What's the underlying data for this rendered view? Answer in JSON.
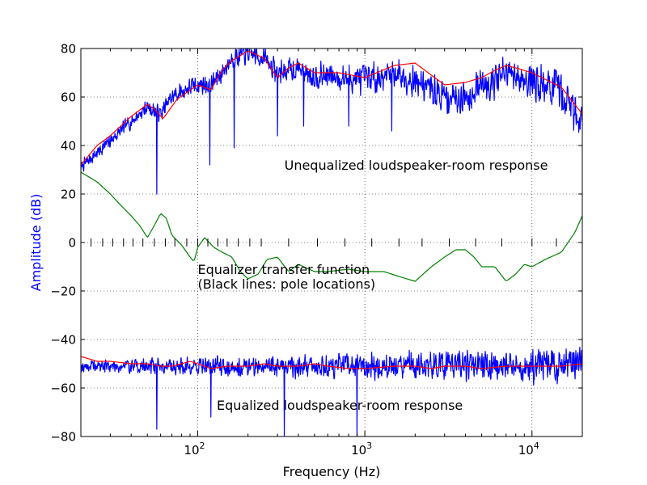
{
  "chart_data": {
    "type": "line",
    "xscale": "log",
    "xlim": [
      20,
      20000
    ],
    "ylim": [
      -80,
      80
    ],
    "xlabel": "Frequency (Hz)",
    "ylabel": "Amplitude (dB)",
    "grid": true,
    "yticks": [
      -80,
      -60,
      -40,
      -20,
      0,
      20,
      40,
      60,
      80
    ],
    "ytick_labels": [
      "−80",
      "−60",
      "−40",
      "−20",
      "0",
      "20",
      "40",
      "60",
      "80"
    ],
    "xticks": [
      100,
      1000,
      10000
    ],
    "xtick_labels": [
      {
        "base": "10",
        "exp": "2"
      },
      {
        "base": "10",
        "exp": "3"
      },
      {
        "base": "10",
        "exp": "4"
      }
    ],
    "annotations": [
      {
        "id": "unequalized",
        "lines": [
          "Unequalized loudspeaker-room response"
        ],
        "x": 330,
        "y": 30
      },
      {
        "id": "equalizer",
        "lines": [
          "Equalizer transfer function",
          "(Black lines: pole locations)"
        ],
        "x": 100,
        "y": -13
      },
      {
        "id": "equalized",
        "lines": [
          "Equalized loudspeaker-room response"
        ],
        "x": 130,
        "y": -69
      }
    ],
    "series": [
      {
        "color": "#0000ff",
        "style": "noisy",
        "baseline": {
          "x": [
            20,
            25,
            30,
            40,
            50,
            60,
            70,
            90,
            100,
            120,
            140,
            160,
            200,
            250,
            300,
            400,
            500,
            700,
            1000,
            1500,
            2000,
            3000,
            4000,
            5000,
            7000,
            10000,
            15000,
            20000
          ],
          "y": [
            31,
            37,
            42,
            50,
            56,
            53,
            60,
            64,
            65,
            65,
            70,
            76,
            78,
            76,
            70,
            72,
            69,
            68,
            67,
            70,
            67,
            60,
            60,
            65,
            69,
            67,
            62,
            50
          ]
        },
        "dips": [
          [
            57,
            20
          ],
          [
            118,
            32
          ],
          [
            165,
            39
          ],
          [
            300,
            44
          ],
          [
            430,
            48
          ],
          [
            800,
            48
          ],
          [
            1450,
            46
          ]
        ],
        "amp_low": 3,
        "amp_high": 10,
        "seed": 7
      },
      {
        "color": "#ff0000",
        "style": "smooth",
        "x": [
          20,
          25,
          30,
          40,
          50,
          55,
          62,
          75,
          100,
          120,
          140,
          160,
          200,
          250,
          300,
          350,
          400,
          500,
          700,
          1000,
          1500,
          2000,
          2500,
          3000,
          4000,
          5000,
          6000,
          7000,
          8000,
          10000,
          15000,
          20000
        ],
        "y": [
          32,
          40,
          44,
          52,
          57,
          55,
          51,
          59,
          65,
          63,
          71,
          75,
          79,
          76,
          68,
          72,
          74,
          70,
          70,
          68,
          73,
          74,
          69,
          65,
          66,
          68,
          71,
          73,
          72,
          70,
          64,
          53
        ]
      },
      {
        "color": "#008000",
        "style": "smooth",
        "x": [
          20,
          25,
          30,
          35,
          40,
          45,
          50,
          55,
          60,
          65,
          70,
          80,
          90,
          95,
          100,
          110,
          125,
          140,
          160,
          180,
          200,
          230,
          260,
          300,
          350,
          400,
          500,
          600,
          800,
          1000,
          1300,
          1600,
          2000,
          2500,
          3000,
          3500,
          4000,
          4500,
          5000,
          6000,
          7000,
          8000,
          9000,
          10000,
          12000,
          15000,
          18000,
          20000
        ],
        "y": [
          29,
          25,
          20,
          15,
          11,
          7,
          2,
          7,
          12,
          10,
          3,
          -1,
          -6,
          -8,
          -2,
          2,
          -2,
          -4,
          -6,
          -12,
          -15,
          -13,
          -7,
          -6,
          -12,
          -9,
          -12,
          -12,
          -11,
          -12,
          -12,
          -14,
          -16,
          -10,
          -6,
          -3,
          -3,
          -6,
          -10,
          -10,
          -16,
          -13,
          -9,
          -10,
          -7,
          -4,
          4,
          11
        ]
      },
      {
        "color": "#0000ff",
        "style": "noisy",
        "baseline": {
          "x": [
            20,
            20000
          ],
          "y": [
            -51,
            -51
          ]
        },
        "dips": [
          [
            57,
            -77
          ],
          [
            120,
            -72
          ],
          [
            330,
            -80
          ],
          [
            900,
            -80
          ]
        ],
        "amp_low": 3,
        "amp_high": 9,
        "seed": 19
      },
      {
        "color": "#ff0000",
        "style": "smooth",
        "x": [
          20,
          25,
          30,
          40,
          50,
          60,
          70,
          80,
          90,
          100,
          120,
          150,
          200,
          250,
          300,
          400,
          500,
          600,
          800,
          1000,
          1500,
          2000,
          2500,
          3000,
          4000,
          5000,
          7000,
          10000,
          15000,
          20000
        ],
        "y": [
          -47,
          -49,
          -49,
          -50,
          -50,
          -51,
          -51,
          -50,
          -49,
          -50,
          -52,
          -51,
          -51,
          -50,
          -51,
          -51,
          -50,
          -51,
          -52,
          -52,
          -51,
          -51,
          -52,
          -51,
          -51,
          -52,
          -51,
          -51,
          -51,
          -50
        ]
      }
    ],
    "pole_locations": [
      23,
      27,
      31,
      36,
      41,
      47,
      55,
      64,
      73,
      86,
      100,
      115,
      132,
      150,
      175,
      205,
      240,
      350,
      520,
      760,
      1100,
      1600,
      2200,
      3200,
      4600,
      6600,
      10000,
      14000
    ]
  }
}
